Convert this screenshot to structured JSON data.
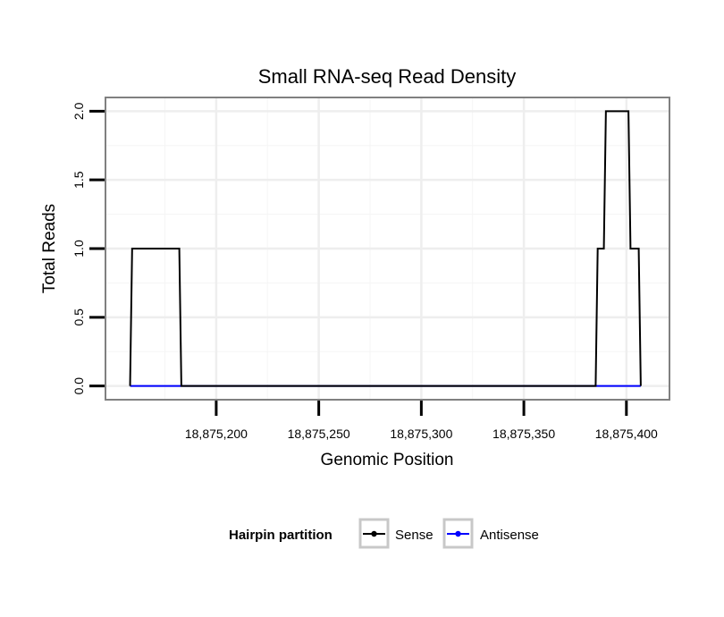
{
  "chart_data": {
    "type": "line",
    "title": "Small RNA-seq Read Density",
    "xlabel": "Genomic Position",
    "ylabel": "Total Reads",
    "xlim": [
      18875146,
      18875421
    ],
    "ylim": [
      -0.1,
      2.1
    ],
    "x_ticks": [
      18875200,
      18875250,
      18875300,
      18875350,
      18875400
    ],
    "x_tick_labels": [
      "18,875,200",
      "18,875,250",
      "18,875,300",
      "18,875,350",
      "18,875,400"
    ],
    "y_ticks": [
      0,
      0.5,
      1,
      1.5,
      2
    ],
    "y_tick_labels": [
      "0.0",
      "0.5",
      "1.0",
      "1.5",
      "2.0"
    ],
    "grid": true,
    "legend": {
      "title": "Hairpin partition",
      "position": "bottom"
    },
    "series": [
      {
        "name": "Sense",
        "color": "#000000",
        "x": [
          18875158,
          18875159,
          18875182,
          18875183,
          18875385,
          18875386,
          18875389,
          18875390,
          18875401,
          18875402,
          18875406,
          18875407
        ],
        "y": [
          0,
          1,
          1,
          0,
          0,
          1,
          1,
          2,
          2,
          1,
          1,
          0
        ]
      },
      {
        "name": "Antisense",
        "color": "#0000ff",
        "x": [
          18875158,
          18875407
        ],
        "y": [
          0,
          0
        ]
      }
    ]
  }
}
